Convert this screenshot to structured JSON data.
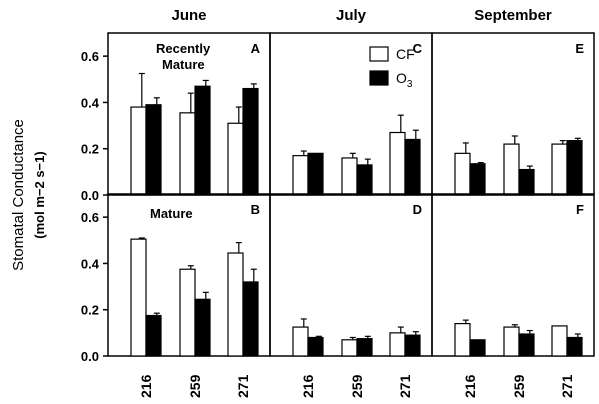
{
  "chart_data": {
    "type": "bar",
    "columns": [
      "June",
      "July",
      "September"
    ],
    "categories": [
      "216",
      "259",
      "271"
    ],
    "ylabel": "Stomatal Conductance",
    "ylabel_units": "(mol m−2 s−1)",
    "ylim": [
      0,
      0.7
    ],
    "yticks": [
      "0.0",
      "0.2",
      "0.4",
      "0.6"
    ],
    "legend": {
      "placement": "top-right of panel C",
      "items": [
        "CF",
        "O3"
      ]
    },
    "colors": {
      "CF": "#ffffff",
      "O3": "#000000"
    },
    "panels": [
      {
        "letter": "A",
        "label": "Recently Mature",
        "row": 0,
        "col": 0,
        "series": [
          {
            "name": "CF",
            "values": [
              0.38,
              0.355,
              0.31
            ],
            "errors": [
              0.145,
              0.085,
              0.07
            ]
          },
          {
            "name": "O3",
            "values": [
              0.39,
              0.47,
              0.46
            ],
            "errors": [
              0.03,
              0.025,
              0.02
            ]
          }
        ]
      },
      {
        "letter": "C",
        "label": "",
        "row": 0,
        "col": 1,
        "series": [
          {
            "name": "CF",
            "values": [
              0.17,
              0.16,
              0.27
            ],
            "errors": [
              0.02,
              0.02,
              0.075
            ]
          },
          {
            "name": "O3",
            "values": [
              0.18,
              0.13,
              0.24
            ],
            "errors": [
              0.0,
              0.025,
              0.04
            ]
          }
        ]
      },
      {
        "letter": "E",
        "label": "",
        "row": 0,
        "col": 2,
        "series": [
          {
            "name": "CF",
            "values": [
              0.18,
              0.22,
              0.22
            ],
            "errors": [
              0.045,
              0.035,
              0.015
            ]
          },
          {
            "name": "O3",
            "values": [
              0.135,
              0.11,
              0.235
            ],
            "errors": [
              0.005,
              0.015,
              0.01
            ]
          }
        ]
      },
      {
        "letter": "B",
        "label": "Mature",
        "row": 1,
        "col": 0,
        "series": [
          {
            "name": "CF",
            "values": [
              0.505,
              0.375,
              0.445
            ],
            "errors": [
              0.005,
              0.015,
              0.045
            ]
          },
          {
            "name": "O3",
            "values": [
              0.175,
              0.245,
              0.32
            ],
            "errors": [
              0.01,
              0.03,
              0.055
            ]
          }
        ]
      },
      {
        "letter": "D",
        "label": "",
        "row": 1,
        "col": 1,
        "series": [
          {
            "name": "CF",
            "values": [
              0.125,
              0.07,
              0.1
            ],
            "errors": [
              0.035,
              0.01,
              0.025
            ]
          },
          {
            "name": "O3",
            "values": [
              0.08,
              0.075,
              0.09
            ],
            "errors": [
              0.005,
              0.01,
              0.015
            ]
          }
        ]
      },
      {
        "letter": "F",
        "label": "",
        "row": 1,
        "col": 2,
        "series": [
          {
            "name": "CF",
            "values": [
              0.14,
              0.125,
              0.13
            ],
            "errors": [
              0.015,
              0.01,
              0.0
            ]
          },
          {
            "name": "O3",
            "values": [
              0.07,
              0.095,
              0.08
            ],
            "errors": [
              0.0,
              0.015,
              0.015
            ]
          }
        ]
      }
    ]
  }
}
